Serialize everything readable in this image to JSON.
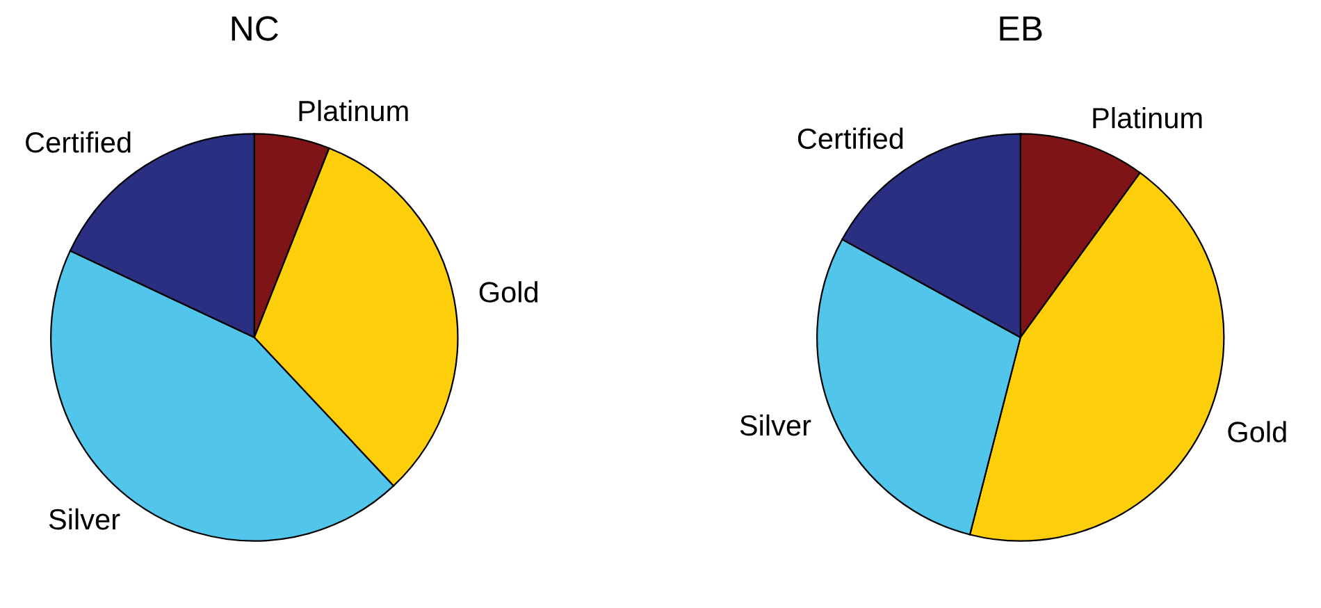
{
  "chart_data": [
    {
      "type": "pie",
      "title": "NC",
      "categories": [
        "Platinum",
        "Gold",
        "Silver",
        "Certified"
      ],
      "values": [
        6,
        32,
        44,
        18
      ],
      "colors": [
        "#7f1416",
        "#fccf0a",
        "#52c6ea",
        "#2a2f82"
      ]
    },
    {
      "type": "pie",
      "title": "EB",
      "categories": [
        "Platinum",
        "Gold",
        "Silver",
        "Certified"
      ],
      "values": [
        10,
        44,
        29,
        17
      ],
      "colors": [
        "#7f1416",
        "#fccf0a",
        "#52c6ea",
        "#2a2f82"
      ]
    }
  ]
}
